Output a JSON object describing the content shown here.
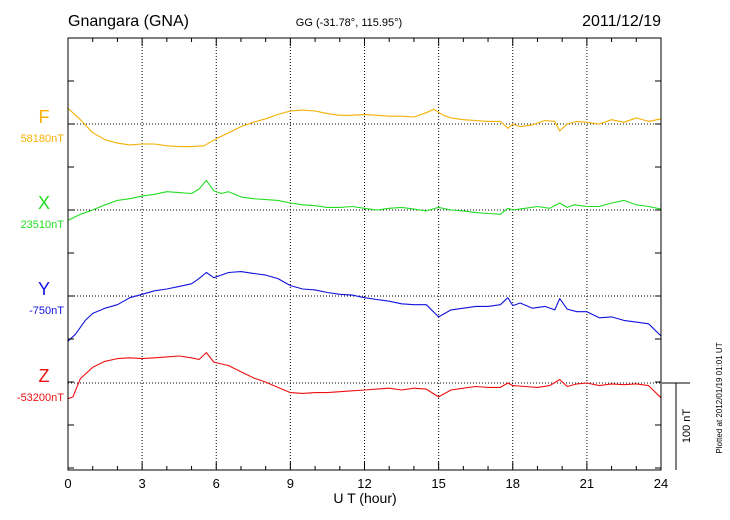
{
  "header": {
    "station": "Gnangara (GNA)",
    "coords": "GG (-31.78°, 115.95°)",
    "date": "2011/12/19"
  },
  "footer": {
    "plotted": "Plotted at 2012/01/19 01:01 UT"
  },
  "chart_data": {
    "type": "line",
    "title": "Gnangara (GNA)",
    "xlabel": "U T (hour)",
    "ylabel": "",
    "xlim": [
      0,
      24
    ],
    "xticks": [
      0,
      3,
      6,
      9,
      12,
      15,
      18,
      21,
      24
    ],
    "xtick_labels": [
      "0",
      "3",
      "6",
      "9",
      "12",
      "15",
      "18",
      "21",
      "24"
    ],
    "grid": true,
    "scale_bar": {
      "label": "100 nT",
      "nT": 100
    },
    "series": [
      {
        "name": "F",
        "baseline_label": "58180nT",
        "baseline_nT": 58180,
        "color": "#f5b000",
        "hours": [
          0,
          0.5,
          1,
          1.5,
          2,
          2.5,
          3,
          3.5,
          4,
          4.5,
          5,
          5.5,
          6,
          6.5,
          7,
          7.5,
          8,
          8.5,
          9,
          9.5,
          10,
          10.5,
          11,
          11.5,
          12,
          12.5,
          13,
          13.5,
          14,
          14.5,
          14.8,
          15.2,
          15.5,
          16,
          16.5,
          17,
          17.5,
          17.8,
          18,
          18.3,
          18.8,
          19.3,
          19.7,
          19.9,
          20.2,
          20.6,
          21,
          21.5,
          22,
          22.5,
          23,
          23.5,
          24
        ],
        "values": [
          18,
          5,
          -10,
          -18,
          -22,
          -24,
          -23,
          -23,
          -25,
          -26,
          -26,
          -25,
          -17,
          -10,
          -3,
          2,
          6,
          11,
          15,
          16,
          15,
          12,
          10,
          10,
          11,
          10,
          9,
          9,
          8,
          13,
          17,
          10,
          7,
          5,
          4,
          3,
          3,
          -5,
          0,
          -3,
          -1,
          4,
          3,
          -8,
          0,
          3,
          2,
          0,
          5,
          2,
          7,
          3,
          6
        ]
      },
      {
        "name": "X",
        "baseline_label": "23510nT",
        "baseline_nT": 23510,
        "color": "#22dd22",
        "hours": [
          0,
          0.5,
          1,
          1.5,
          2,
          2.5,
          3,
          3.5,
          4,
          4.5,
          5,
          5.3,
          5.6,
          5.9,
          6.2,
          6.5,
          7,
          7.5,
          8,
          8.5,
          9,
          9.5,
          10,
          10.5,
          11,
          11.5,
          12,
          12.5,
          13,
          13.5,
          14,
          14.5,
          15,
          15.5,
          16,
          16.5,
          17,
          17.5,
          17.8,
          18,
          18.5,
          19,
          19.5,
          19.9,
          20.2,
          20.5,
          21,
          21.5,
          22,
          22.5,
          23,
          23.5,
          24
        ],
        "values": [
          -12,
          -5,
          0,
          6,
          11,
          13,
          16,
          18,
          21,
          20,
          19,
          24,
          34,
          22,
          19,
          21,
          15,
          13,
          12,
          11,
          8,
          6,
          5,
          3,
          3,
          4,
          2,
          0,
          2,
          3,
          1,
          -1,
          3,
          0,
          -1,
          -3,
          -4,
          -5,
          2,
          0,
          2,
          4,
          2,
          8,
          3,
          6,
          4,
          4,
          8,
          11,
          6,
          4,
          1
        ]
      },
      {
        "name": "Y",
        "baseline_label": "-750nT",
        "baseline_nT": -750,
        "color": "#1111dd",
        "hours": [
          0,
          0.3,
          0.7,
          1,
          1.5,
          2,
          2.5,
          3,
          3.5,
          4,
          4.5,
          5,
          5.3,
          5.6,
          5.9,
          6.2,
          6.5,
          7,
          7.5,
          8,
          8.5,
          9,
          9.5,
          10,
          10.5,
          11,
          11.5,
          12,
          12.5,
          13,
          13.5,
          14,
          14.5,
          15,
          15.5,
          16,
          16.5,
          17,
          17.5,
          17.8,
          18,
          18.3,
          18.8,
          19.3,
          19.7,
          19.9,
          20.2,
          20.6,
          21,
          21.5,
          22,
          22.5,
          23,
          23.5,
          24
        ],
        "values": [
          -52,
          -44,
          -28,
          -20,
          -14,
          -10,
          -2,
          2,
          6,
          8,
          11,
          14,
          20,
          27,
          21,
          24,
          27,
          28,
          26,
          24,
          20,
          12,
          8,
          7,
          4,
          2,
          1,
          -2,
          -4,
          -6,
          -9,
          -10,
          -10,
          -24,
          -16,
          -14,
          -12,
          -12,
          -10,
          -2,
          -11,
          -8,
          -14,
          -12,
          -16,
          -3,
          -15,
          -18,
          -18,
          -25,
          -24,
          -28,
          -30,
          -32,
          -46
        ]
      },
      {
        "name": "Z",
        "baseline_label": "-53200nT",
        "baseline_nT": -53200,
        "color": "#ee1111",
        "hours": [
          0,
          0.2,
          0.5,
          1,
          1.5,
          2,
          2.5,
          3,
          3.5,
          4,
          4.5,
          5,
          5.3,
          5.6,
          5.9,
          6.2,
          6.5,
          7,
          7.5,
          8,
          8.5,
          9,
          9.5,
          10,
          10.5,
          11,
          11.5,
          12,
          12.5,
          13,
          13.5,
          14,
          14.5,
          15,
          15.5,
          16,
          16.5,
          17,
          17.5,
          17.8,
          18,
          18.5,
          19,
          19.5,
          19.9,
          20.2,
          20.6,
          21,
          21.5,
          22,
          22.5,
          23,
          23.5,
          24
        ],
        "values": [
          -18,
          -16,
          5,
          18,
          25,
          28,
          29,
          28,
          29,
          30,
          31,
          29,
          27,
          35,
          24,
          22,
          20,
          13,
          6,
          1,
          -5,
          -11,
          -12,
          -11,
          -11,
          -10,
          -9,
          -8,
          -7,
          -6,
          -8,
          -6,
          -7,
          -16,
          -8,
          -6,
          -4,
          -5,
          -5,
          0,
          -3,
          -4,
          -5,
          -3,
          4,
          -4,
          -1,
          0,
          -3,
          -1,
          -2,
          -1,
          -3,
          -17
        ]
      }
    ]
  }
}
